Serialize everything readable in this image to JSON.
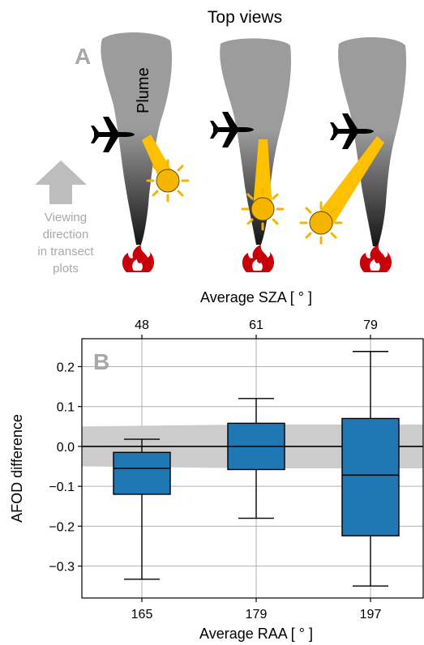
{
  "top_panel": {
    "title": "Top views",
    "panel_label": "A",
    "plume_label": "Plume",
    "viewing_direction_lines": [
      "Viewing",
      "direction",
      "in transect",
      "plots"
    ],
    "plume_gradient_top": "#9c9c9c",
    "plume_gradient_bottom": "#151515",
    "sun_color": "#f5b400",
    "beam_color": "#ffc000",
    "fire_color": "#c8000a",
    "aircraft_color": "#000000",
    "arrow_color": "#bdbdbd",
    "icons": [
      "plume",
      "aircraft-icon",
      "sun-icon",
      "fire-icon",
      "arrow-up-icon"
    ]
  },
  "chart_data": {
    "type": "box",
    "panel_label": "B",
    "xlabel": "Average RAA [ ° ]",
    "top_xlabel": "Average SZA [ ° ]",
    "ylabel": "AFOD difference",
    "ylim": [
      -0.38,
      0.27
    ],
    "yticks": [
      "0.2",
      "0.1",
      "0.0",
      "−0.1",
      "−0.2",
      "−0.3"
    ],
    "categories": [
      "165",
      "179",
      "197"
    ],
    "top_categories": [
      "48",
      "61",
      "79"
    ],
    "grid": true,
    "box_color": "#1f77b4",
    "band_color": "#cccccc",
    "boxes": [
      {
        "whisker_low": -0.333,
        "q1": -0.12,
        "median": -0.055,
        "q3": -0.015,
        "whisker_high": 0.018
      },
      {
        "whisker_low": -0.18,
        "q1": -0.058,
        "median": 0.0,
        "q3": 0.058,
        "whisker_high": 0.12
      },
      {
        "whisker_low": -0.35,
        "q1": -0.224,
        "median": -0.072,
        "q3": 0.07,
        "whisker_high": 0.238
      }
    ],
    "uncertainty_band": [
      {
        "x": "165",
        "low": -0.05,
        "high": 0.05
      },
      {
        "x": "179",
        "low": -0.055,
        "high": 0.055
      },
      {
        "x": "197",
        "low": -0.055,
        "high": 0.055
      }
    ]
  }
}
